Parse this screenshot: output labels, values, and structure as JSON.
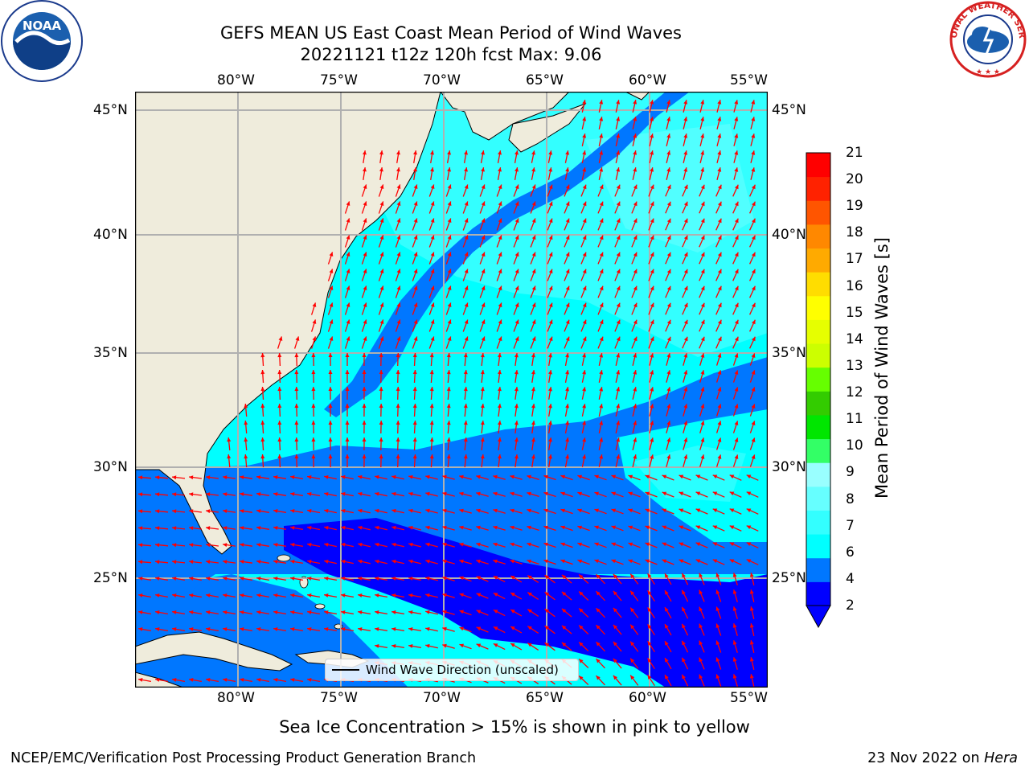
{
  "title": {
    "line1": "GEFS MEAN US East Coast Mean Period of Wind Waves",
    "line2": "20221121 t12z 120h fcst   Max: 9.06"
  },
  "map": {
    "longitude_labels": [
      "80°W",
      "75°W",
      "70°W",
      "65°W",
      "60°W",
      "55°W"
    ],
    "latitude_labels": [
      "45°N",
      "40°N",
      "35°N",
      "30°N",
      "25°N"
    ],
    "land_color": "#efecdc",
    "arrow_color": "#ff0000",
    "grid_color": "#b0b0b0",
    "legend_label": "Wind Wave Direction (unscaled)"
  },
  "colorbar": {
    "label": "Mean Period of Wind Waves [s]",
    "ticks": [
      "21",
      "20",
      "19",
      "18",
      "17",
      "16",
      "15",
      "14",
      "13",
      "12",
      "11",
      "10",
      "9",
      "8",
      "7",
      "6",
      "4",
      "2"
    ],
    "colors": [
      "#0000ff",
      "#0077ff",
      "#00ffff",
      "#33ffff",
      "#66ffff",
      "#99ffff",
      "#33ff66",
      "#00e600",
      "#33cc00",
      "#66ff00",
      "#ccff00",
      "#e6ff00",
      "#ffff00",
      "#ffdd00",
      "#ffaa00",
      "#ff8800",
      "#ff5500",
      "#ff2200",
      "#ff0000"
    ]
  },
  "note": "Sea Ice Concentration > 15% is shown in pink to yellow",
  "footer": {
    "left": "NCEP/EMC/Verification Post Processing Product Generation Branch",
    "right_prefix": "23 Nov 2022 on ",
    "right_host": "Hera"
  },
  "logos": {
    "noaa": "NOAA",
    "nws": "NATIONAL WEATHER SERVICE"
  }
}
